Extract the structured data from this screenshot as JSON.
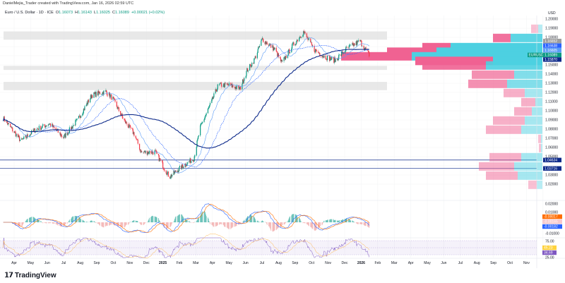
{
  "header": {
    "credit": "DanielMejia_Trader created with TradingView.com, Jan 16, 2026 02:59 UTC"
  },
  "legend": {
    "symbol": "Euro / U.S. Dollar · 1D · ICE",
    "o_label": "O",
    "open": "1.16073",
    "h_label": "H",
    "high": "1.16143",
    "l_label": "L",
    "low": "1.16025",
    "c_label": "C",
    "close": "1.16089",
    "change": "+0.00021 (+0.02%)"
  },
  "currency": "USD",
  "price_ticks": [
    "1.20000",
    "1.19000",
    "1.18000",
    "1.15000",
    "1.14000",
    "1.13000",
    "1.12000",
    "1.11000",
    "1.10000",
    "1.09000",
    "1.08000",
    "1.07000",
    "1.06000",
    "1.05000",
    "1.03000",
    "1.02000"
  ],
  "price_tags": [
    {
      "value": "1.16652",
      "color": "#9e9e9e"
    },
    {
      "value": "1.16638",
      "color": "#2962ff"
    },
    {
      "value": "1.16605",
      "color": "#5b9cf6"
    },
    {
      "value": "1.16089",
      "color": "#089981",
      "label": "EURUSD"
    },
    {
      "value": "1.15870",
      "color": "#0d2a8a"
    },
    {
      "value": "1.04634",
      "color": "#0d2a8a"
    },
    {
      "value": "1.03716",
      "color": "#0d2a8a"
    }
  ],
  "macd": {
    "ticks": [
      "0.02000",
      "0.01000",
      "-0.01000"
    ],
    "tags": [
      {
        "value": "-0.00017",
        "color": "#ff6d00"
      },
      {
        "value": "-0.00165",
        "color": "#f7c9cc",
        "text": "#b22833"
      },
      {
        "value": "-0.00182",
        "color": "#2962ff"
      }
    ]
  },
  "rsi": {
    "ticks": [
      "75.00",
      "25.00"
    ],
    "tags": [
      {
        "value": "45.23",
        "color": "#ffd33d",
        "text": "#131722"
      },
      {
        "value": "34.69",
        "color": "#7e57c2"
      }
    ]
  },
  "time_labels": [
    "Apr",
    "May",
    "Jun",
    "Jul",
    "Aug",
    "Sep",
    "Oct",
    "Nov",
    "Dec",
    "2025",
    "Feb",
    "Mar",
    "Apr",
    "May",
    "Jun",
    "Jul",
    "Aug",
    "Sep",
    "Oct",
    "Nov",
    "Dec",
    "2026",
    "Feb",
    "Mar",
    "Apr",
    "May",
    "Jun",
    "Jul",
    "Aug",
    "Sep",
    "Oct",
    "Nov"
  ],
  "brand": "TradingView",
  "colors": {
    "up": "#089981",
    "down": "#f23645",
    "ma_fast": "#5b9cf6",
    "ma_slow": "#0d2a8a",
    "vp_up": "#4dd0e1",
    "vp_down": "#f06292"
  },
  "chart_data": {
    "type": "candlestick",
    "x": [
      "2024-03-12",
      "2024-04-14",
      "2024-05-09",
      "2024-06-05",
      "2024-07-01",
      "2024-07-27",
      "2024-08-22",
      "2024-09-17",
      "2024-09-30",
      "2024-10-20",
      "2024-11-08",
      "2024-11-21",
      "2024-12-17",
      "2025-01-12",
      "2025-02-06",
      "2025-02-26",
      "2025-03-10",
      "2025-03-30",
      "2025-04-12",
      "2025-05-02",
      "2025-05-22",
      "2025-06-04",
      "2025-06-17",
      "2025-07-02",
      "2025-07-25",
      "2025-08-07",
      "2025-08-27",
      "2025-09-16",
      "2025-10-05",
      "2025-10-25",
      "2025-11-13",
      "2025-12-03",
      "2025-12-29",
      "2026-01-15"
    ],
    "close": [
      1.092,
      1.067,
      1.079,
      1.086,
      1.071,
      1.09,
      1.117,
      1.121,
      1.113,
      1.09,
      1.075,
      1.055,
      1.055,
      1.028,
      1.04,
      1.048,
      1.082,
      1.109,
      1.128,
      1.128,
      1.124,
      1.144,
      1.155,
      1.178,
      1.167,
      1.152,
      1.171,
      1.186,
      1.167,
      1.159,
      1.155,
      1.167,
      1.176,
      1.161
    ],
    "ylim": [
      1.015,
      1.205
    ],
    "zones": [
      [
        1.1775,
        1.1865
      ],
      [
        1.1445,
        1.149
      ],
      [
        1.1225,
        1.1315
      ]
    ],
    "levels": [
      1.04634,
      1.03716
    ]
  }
}
